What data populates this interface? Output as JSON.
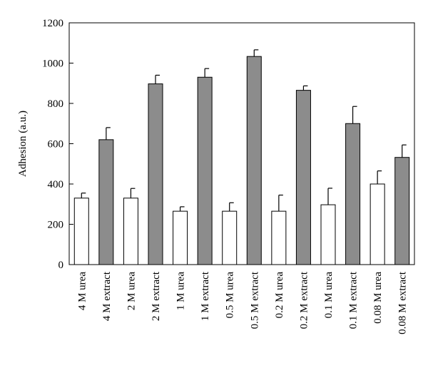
{
  "chart_data": {
    "type": "bar",
    "title": "",
    "xlabel": "",
    "ylabel": "Adhesion (a.u.)",
    "ylim": [
      0,
      1200
    ],
    "yticks": [
      0,
      200,
      400,
      600,
      800,
      1000,
      1200
    ],
    "categories": [
      "4 M urea",
      "4 M extract",
      "2 M urea",
      "2 M extract",
      "1 M urea",
      "1 M extract",
      "0.5 M urea",
      "0.5 M extract",
      "0.2 M urea",
      "0.2 M extract",
      "0.1 M urea",
      "0.1 M extract",
      "0.08 M urea",
      "0.08 M extract"
    ],
    "values": [
      330,
      620,
      330,
      897,
      265,
      930,
      265,
      1033,
      265,
      865,
      297,
      700,
      400,
      532
    ],
    "errors": [
      25,
      60,
      48,
      43,
      22,
      43,
      42,
      33,
      80,
      22,
      82,
      85,
      65,
      62
    ],
    "bar_fills": [
      "#ffffff",
      "#8c8c8c",
      "#ffffff",
      "#8c8c8c",
      "#ffffff",
      "#8c8c8c",
      "#ffffff",
      "#8c8c8c",
      "#ffffff",
      "#8c8c8c",
      "#ffffff",
      "#8c8c8c",
      "#ffffff",
      "#8c8c8c"
    ],
    "grid": false,
    "legend": "none"
  }
}
